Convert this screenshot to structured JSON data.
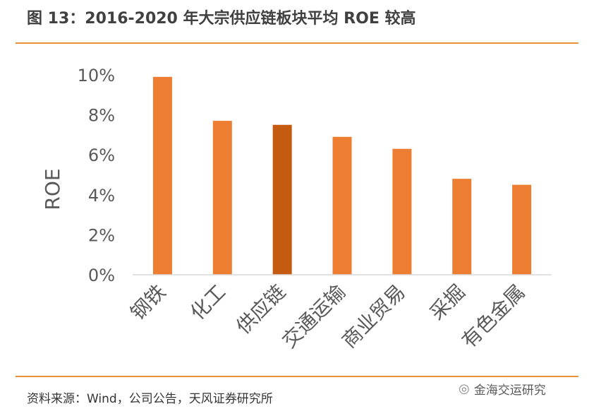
{
  "header": {
    "title": "图 13：2016-2020 年大宗供应链板块平均 ROE 较高"
  },
  "footer": {
    "source": "资料来源：Wind，公司公告，天风证券研究所",
    "watermark": "金海交运研究",
    "watermark_icon": "wechat-icon"
  },
  "colors": {
    "accent": "#E8923A",
    "bar": "#ED7D31",
    "bar_highlight": "#C55A11"
  },
  "chart_data": {
    "type": "bar",
    "title": "图 13：2016-2020 年大宗供应链板块平均 ROE 较高",
    "ylabel": "ROE",
    "xlabel": "",
    "categories": [
      "钢铁",
      "化工",
      "供应链",
      "交通运输",
      "商业贸易",
      "采掘",
      "有色金属"
    ],
    "values": [
      9.9,
      7.7,
      7.5,
      6.9,
      6.3,
      4.8,
      4.5
    ],
    "highlight": "供应链",
    "ylim": [
      0,
      10
    ],
    "yticks": [
      "0%",
      "2%",
      "4%",
      "6%",
      "8%",
      "10%"
    ],
    "grid": false,
    "legend": "none"
  }
}
